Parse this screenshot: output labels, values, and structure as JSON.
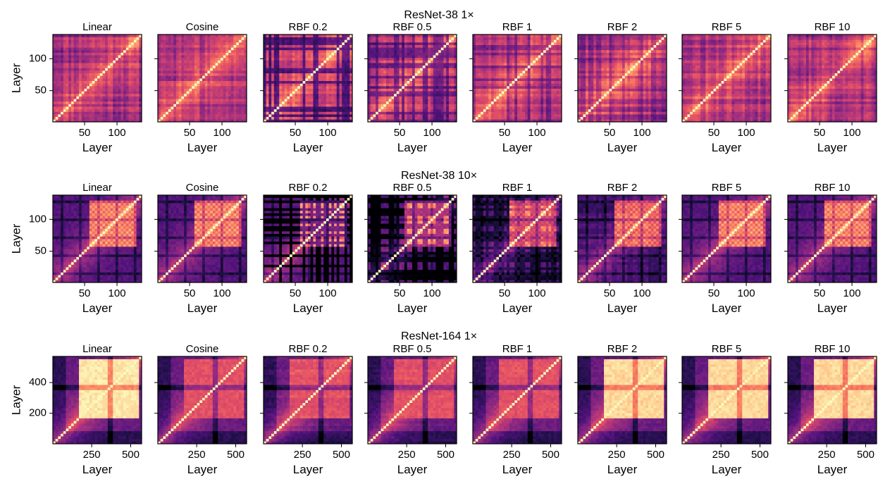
{
  "chart_data": {
    "type": "heatmap",
    "description_of_values": "layer-by-layer representation similarity (CKA)",
    "colormap": "magma",
    "rows": [
      {
        "title": "ResNet-38 1×",
        "n_layers": 138,
        "xlabel": "Layer",
        "ylabel": "Layer",
        "xticks": [
          50,
          100
        ],
        "yticks": [
          50,
          100
        ],
        "panels": [
          {
            "title": "Linear",
            "kernel": "linear"
          },
          {
            "title": "Cosine",
            "kernel": "cosine"
          },
          {
            "title": "RBF 0.2",
            "kernel": "rbf",
            "sigma": 0.2
          },
          {
            "title": "RBF 0.5",
            "kernel": "rbf",
            "sigma": 0.5
          },
          {
            "title": "RBF 1",
            "kernel": "rbf",
            "sigma": 1
          },
          {
            "title": "RBF 2",
            "kernel": "rbf",
            "sigma": 2
          },
          {
            "title": "RBF 5",
            "kernel": "rbf",
            "sigma": 5
          },
          {
            "title": "RBF 10",
            "kernel": "rbf",
            "sigma": 10
          }
        ]
      },
      {
        "title": "ResNet-38 10×",
        "n_layers": 138,
        "xlabel": "Layer",
        "ylabel": "Layer",
        "xticks": [
          50,
          100
        ],
        "yticks": [
          50,
          100
        ],
        "panels": [
          {
            "title": "Linear",
            "kernel": "linear"
          },
          {
            "title": "Cosine",
            "kernel": "cosine"
          },
          {
            "title": "RBF 0.2",
            "kernel": "rbf",
            "sigma": 0.2
          },
          {
            "title": "RBF 0.5",
            "kernel": "rbf",
            "sigma": 0.5
          },
          {
            "title": "RBF 1",
            "kernel": "rbf",
            "sigma": 1
          },
          {
            "title": "RBF 2",
            "kernel": "rbf",
            "sigma": 2
          },
          {
            "title": "RBF 5",
            "kernel": "rbf",
            "sigma": 5
          },
          {
            "title": "RBF 10",
            "kernel": "rbf",
            "sigma": 10
          }
        ]
      },
      {
        "title": "ResNet-164 1×",
        "n_layers": 570,
        "xlabel": "Layer",
        "ylabel": "Layer",
        "xticks": [
          250,
          500
        ],
        "yticks": [
          200,
          400
        ],
        "panels": [
          {
            "title": "Linear",
            "kernel": "linear"
          },
          {
            "title": "Cosine",
            "kernel": "cosine"
          },
          {
            "title": "RBF 0.2",
            "kernel": "rbf",
            "sigma": 0.2
          },
          {
            "title": "RBF 0.5",
            "kernel": "rbf",
            "sigma": 0.5
          },
          {
            "title": "RBF 1",
            "kernel": "rbf",
            "sigma": 1
          },
          {
            "title": "RBF 2",
            "kernel": "rbf",
            "sigma": 2
          },
          {
            "title": "RBF 5",
            "kernel": "rbf",
            "sigma": 5
          },
          {
            "title": "RBF 10",
            "kernel": "rbf",
            "sigma": 10
          }
        ]
      }
    ]
  }
}
